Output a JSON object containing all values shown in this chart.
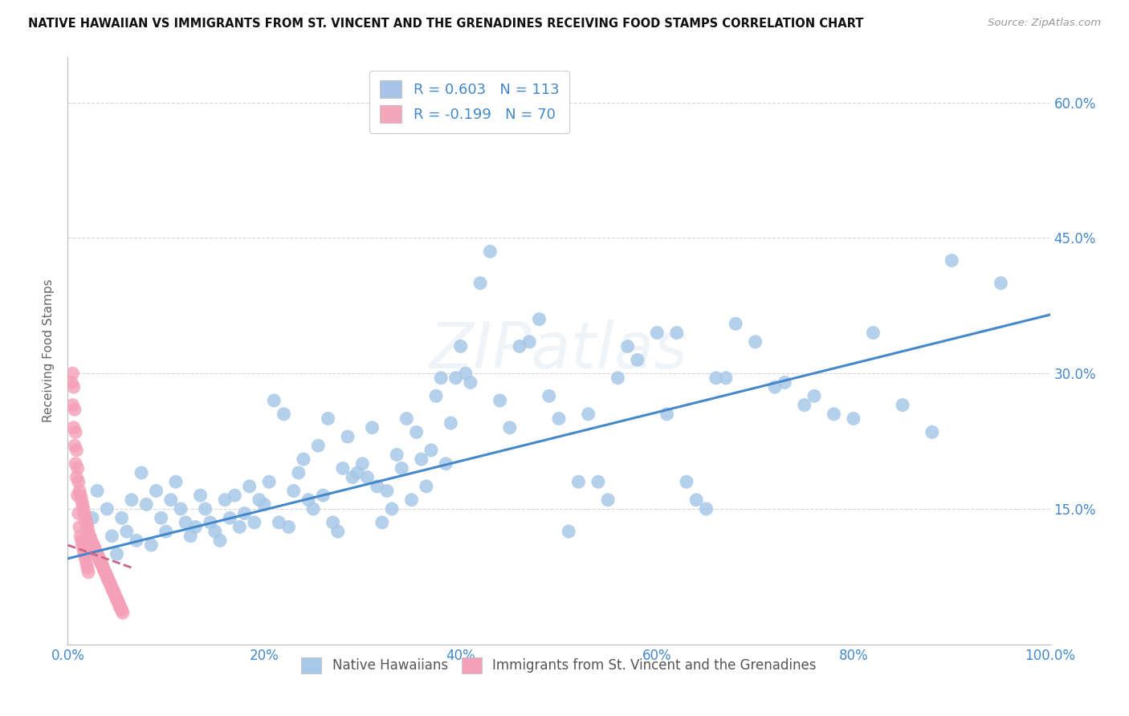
{
  "title": "NATIVE HAWAIIAN VS IMMIGRANTS FROM ST. VINCENT AND THE GRENADINES RECEIVING FOOD STAMPS CORRELATION CHART",
  "source": "Source: ZipAtlas.com",
  "ylabel": "Receiving Food Stamps",
  "xlim": [
    0,
    100
  ],
  "ylim": [
    0,
    65
  ],
  "x_ticks": [
    0,
    20,
    40,
    60,
    80,
    100
  ],
  "x_tick_labels": [
    "0.0%",
    "20%",
    "40%",
    "60%",
    "80%",
    "100.0%"
  ],
  "y_ticks": [
    0,
    15,
    30,
    45,
    60
  ],
  "y_tick_labels_right": [
    "",
    "15.0%",
    "30.0%",
    "45.0%",
    "60.0%"
  ],
  "legend_entries": [
    {
      "color": "#aac4e8",
      "R": "R = 0.603",
      "N": "N = 113"
    },
    {
      "color": "#f4a7b9",
      "R": "R = -0.199",
      "N": "N = 70"
    }
  ],
  "blue_color": "#a8c8e8",
  "pink_color": "#f4a0b8",
  "blue_line_color": "#4488cc",
  "pink_line_color": "#cc6688",
  "watermark": "ZIPatlas",
  "background_color": "#ffffff",
  "grid_color": "#cccccc",
  "axis_label_color": "#4488cc",
  "blue_scatter": [
    [
      2.5,
      14.0
    ],
    [
      3.0,
      17.0
    ],
    [
      4.0,
      15.0
    ],
    [
      4.5,
      12.0
    ],
    [
      5.0,
      10.0
    ],
    [
      5.5,
      14.0
    ],
    [
      6.0,
      12.5
    ],
    [
      6.5,
      16.0
    ],
    [
      7.0,
      11.5
    ],
    [
      7.5,
      19.0
    ],
    [
      8.0,
      15.5
    ],
    [
      8.5,
      11.0
    ],
    [
      9.0,
      17.0
    ],
    [
      9.5,
      14.0
    ],
    [
      10.0,
      12.5
    ],
    [
      10.5,
      16.0
    ],
    [
      11.0,
      18.0
    ],
    [
      11.5,
      15.0
    ],
    [
      12.0,
      13.5
    ],
    [
      12.5,
      12.0
    ],
    [
      13.0,
      13.0
    ],
    [
      13.5,
      16.5
    ],
    [
      14.0,
      15.0
    ],
    [
      14.5,
      13.5
    ],
    [
      15.0,
      12.5
    ],
    [
      15.5,
      11.5
    ],
    [
      16.0,
      16.0
    ],
    [
      16.5,
      14.0
    ],
    [
      17.0,
      16.5
    ],
    [
      17.5,
      13.0
    ],
    [
      18.0,
      14.5
    ],
    [
      18.5,
      17.5
    ],
    [
      19.0,
      13.5
    ],
    [
      19.5,
      16.0
    ],
    [
      20.0,
      15.5
    ],
    [
      20.5,
      18.0
    ],
    [
      21.0,
      27.0
    ],
    [
      21.5,
      13.5
    ],
    [
      22.0,
      25.5
    ],
    [
      22.5,
      13.0
    ],
    [
      23.0,
      17.0
    ],
    [
      23.5,
      19.0
    ],
    [
      24.0,
      20.5
    ],
    [
      24.5,
      16.0
    ],
    [
      25.0,
      15.0
    ],
    [
      25.5,
      22.0
    ],
    [
      26.0,
      16.5
    ],
    [
      26.5,
      25.0
    ],
    [
      27.0,
      13.5
    ],
    [
      27.5,
      12.5
    ],
    [
      28.0,
      19.5
    ],
    [
      28.5,
      23.0
    ],
    [
      29.0,
      18.5
    ],
    [
      29.5,
      19.0
    ],
    [
      30.0,
      20.0
    ],
    [
      30.5,
      18.5
    ],
    [
      31.0,
      24.0
    ],
    [
      31.5,
      17.5
    ],
    [
      32.0,
      13.5
    ],
    [
      32.5,
      17.0
    ],
    [
      33.0,
      15.0
    ],
    [
      33.5,
      21.0
    ],
    [
      34.0,
      19.5
    ],
    [
      34.5,
      25.0
    ],
    [
      35.0,
      16.0
    ],
    [
      35.5,
      23.5
    ],
    [
      36.0,
      20.5
    ],
    [
      36.5,
      17.5
    ],
    [
      37.0,
      21.5
    ],
    [
      37.5,
      27.5
    ],
    [
      38.0,
      29.5
    ],
    [
      38.5,
      20.0
    ],
    [
      39.0,
      24.5
    ],
    [
      39.5,
      29.5
    ],
    [
      40.0,
      33.0
    ],
    [
      40.5,
      30.0
    ],
    [
      41.0,
      29.0
    ],
    [
      42.0,
      40.0
    ],
    [
      43.0,
      43.5
    ],
    [
      44.0,
      27.0
    ],
    [
      45.0,
      24.0
    ],
    [
      46.0,
      33.0
    ],
    [
      47.0,
      33.5
    ],
    [
      48.0,
      36.0
    ],
    [
      49.0,
      27.5
    ],
    [
      50.0,
      25.0
    ],
    [
      51.0,
      12.5
    ],
    [
      52.0,
      18.0
    ],
    [
      53.0,
      25.5
    ],
    [
      54.0,
      18.0
    ],
    [
      55.0,
      16.0
    ],
    [
      56.0,
      29.5
    ],
    [
      57.0,
      33.0
    ],
    [
      58.0,
      31.5
    ],
    [
      60.0,
      34.5
    ],
    [
      61.0,
      25.5
    ],
    [
      62.0,
      34.5
    ],
    [
      63.0,
      18.0
    ],
    [
      64.0,
      16.0
    ],
    [
      65.0,
      15.0
    ],
    [
      66.0,
      29.5
    ],
    [
      67.0,
      29.5
    ],
    [
      68.0,
      35.5
    ],
    [
      70.0,
      33.5
    ],
    [
      72.0,
      28.5
    ],
    [
      73.0,
      29.0
    ],
    [
      75.0,
      26.5
    ],
    [
      76.0,
      27.5
    ],
    [
      78.0,
      25.5
    ],
    [
      80.0,
      25.0
    ],
    [
      82.0,
      34.5
    ],
    [
      85.0,
      26.5
    ],
    [
      88.0,
      23.5
    ],
    [
      90.0,
      42.5
    ],
    [
      95.0,
      40.0
    ]
  ],
  "pink_scatter": [
    [
      0.5,
      30.0
    ],
    [
      0.6,
      28.5
    ],
    [
      0.7,
      26.0
    ],
    [
      0.8,
      23.5
    ],
    [
      0.9,
      21.5
    ],
    [
      1.0,
      19.5
    ],
    [
      1.1,
      18.0
    ],
    [
      1.2,
      17.0
    ],
    [
      1.3,
      16.5
    ],
    [
      1.4,
      16.0
    ],
    [
      1.5,
      15.5
    ],
    [
      1.6,
      15.0
    ],
    [
      1.7,
      14.5
    ],
    [
      1.8,
      14.0
    ],
    [
      1.9,
      13.5
    ],
    [
      2.0,
      13.0
    ],
    [
      2.1,
      12.5
    ],
    [
      2.2,
      12.0
    ],
    [
      2.3,
      11.8
    ],
    [
      2.4,
      11.5
    ],
    [
      2.5,
      11.2
    ],
    [
      2.6,
      11.0
    ],
    [
      2.7,
      10.8
    ],
    [
      2.8,
      10.5
    ],
    [
      2.9,
      10.2
    ],
    [
      3.0,
      10.0
    ],
    [
      3.1,
      9.8
    ],
    [
      3.2,
      9.5
    ],
    [
      3.3,
      9.2
    ],
    [
      3.4,
      9.0
    ],
    [
      3.5,
      8.8
    ],
    [
      3.6,
      8.5
    ],
    [
      3.7,
      8.2
    ],
    [
      3.8,
      8.0
    ],
    [
      3.9,
      7.8
    ],
    [
      4.0,
      7.5
    ],
    [
      4.1,
      7.2
    ],
    [
      4.2,
      7.0
    ],
    [
      4.3,
      6.8
    ],
    [
      4.4,
      6.5
    ],
    [
      4.5,
      6.2
    ],
    [
      4.6,
      6.0
    ],
    [
      4.7,
      5.8
    ],
    [
      4.8,
      5.5
    ],
    [
      4.9,
      5.2
    ],
    [
      5.0,
      5.0
    ],
    [
      5.1,
      4.8
    ],
    [
      5.2,
      4.5
    ],
    [
      5.3,
      4.2
    ],
    [
      5.4,
      4.0
    ],
    [
      5.5,
      3.8
    ],
    [
      5.6,
      3.5
    ],
    [
      0.4,
      29.0
    ],
    [
      0.5,
      26.5
    ],
    [
      0.6,
      24.0
    ],
    [
      0.7,
      22.0
    ],
    [
      0.8,
      20.0
    ],
    [
      0.9,
      18.5
    ],
    [
      1.0,
      16.5
    ],
    [
      1.1,
      14.5
    ],
    [
      1.2,
      13.0
    ],
    [
      1.3,
      12.0
    ],
    [
      1.4,
      11.5
    ],
    [
      1.5,
      11.0
    ],
    [
      1.6,
      10.5
    ],
    [
      1.7,
      10.0
    ],
    [
      1.8,
      9.5
    ],
    [
      1.9,
      9.0
    ],
    [
      2.0,
      8.5
    ],
    [
      2.1,
      8.0
    ]
  ],
  "blue_trendline": {
    "x_start": 0,
    "y_start": 9.5,
    "x_end": 100,
    "y_end": 36.5
  },
  "pink_trendline": {
    "x_start": 0,
    "y_start": 11.0,
    "x_end": 6.5,
    "y_end": 8.5
  }
}
